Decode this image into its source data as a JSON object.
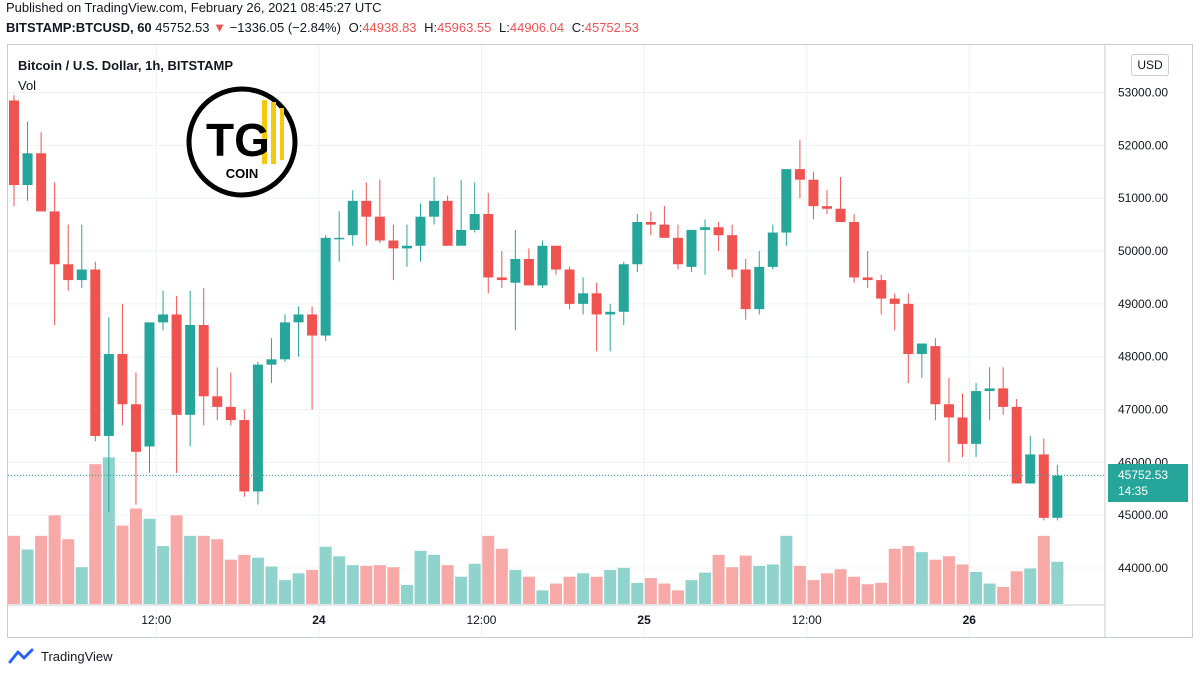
{
  "header": {
    "published": "Published on TradingView.com, February 26, 2021 08:45:27 UTC",
    "symbol": "BITSTAMP:BTCUSD, 60",
    "last": "45752.53",
    "arrow": "▼",
    "change": "−1336.05 (−2.84%)",
    "o_label": "O:",
    "o": "44938.83",
    "h_label": "H:",
    "h": "45963.55",
    "l_label": "L:",
    "l": "44906.04",
    "c_label": "C:",
    "c": "45752.53"
  },
  "legend": {
    "title": "Bitcoin / U.S. Dollar, 1h, BITSTAMP",
    "vol": "Vol"
  },
  "currency_badge": "USD",
  "price_tag": {
    "price": "45752.53",
    "countdown": "14:35"
  },
  "logo": {
    "text_main": "TG",
    "text_sub": "COIN"
  },
  "footer": {
    "brand": "TradingView"
  },
  "colors": {
    "up": "#26a69a",
    "down": "#ef5350",
    "up_vol": "#8fd3cc",
    "down_vol": "#f7a9a7",
    "grid": "#eef0f3"
  },
  "chart_data": {
    "type": "candlestick",
    "ylim": [
      43300,
      53900
    ],
    "y_ticks": [
      44000,
      45000,
      46000,
      47000,
      48000,
      49000,
      50000,
      51000,
      52000,
      53000
    ],
    "y_tick_labels": [
      "44000.00",
      "45000.00",
      "46000.00",
      "47000.00",
      "48000.00",
      "49000.00",
      "50000.00",
      "51000.00",
      "52000.00",
      "53000.00"
    ],
    "x_ticks": [
      {
        "index": 10.5,
        "label": "12:00"
      },
      {
        "index": 22.5,
        "label": "24"
      },
      {
        "index": 34.5,
        "label": "12:00"
      },
      {
        "index": 46.5,
        "label": "25"
      },
      {
        "index": 58.5,
        "label": "12:00"
      },
      {
        "index": 70.5,
        "label": "26"
      }
    ],
    "last_price": 45752.53,
    "candles": [
      [
        52850,
        52950,
        50850,
        51250
      ],
      [
        51250,
        52450,
        50950,
        51850
      ],
      [
        51850,
        52250,
        50800,
        50750
      ],
      [
        50750,
        51300,
        48600,
        49750
      ],
      [
        49750,
        50500,
        49250,
        49450
      ],
      [
        49450,
        50500,
        49300,
        49650
      ],
      [
        49650,
        49800,
        46400,
        46500
      ],
      [
        46500,
        48750,
        45050,
        48050
      ],
      [
        48050,
        49000,
        46700,
        47100
      ],
      [
        47100,
        47700,
        45200,
        46200
      ],
      [
        46300,
        48600,
        45800,
        48650
      ],
      [
        48650,
        49250,
        48500,
        48800
      ],
      [
        48800,
        49150,
        45800,
        46900
      ],
      [
        46900,
        49250,
        46300,
        48600
      ],
      [
        48600,
        49300,
        46700,
        47250
      ],
      [
        47250,
        47800,
        46800,
        47050
      ],
      [
        47050,
        47700,
        46700,
        46800
      ],
      [
        46800,
        47000,
        45350,
        45450
      ],
      [
        45450,
        47900,
        45200,
        47850
      ],
      [
        47850,
        48350,
        47500,
        47950
      ],
      [
        47950,
        48800,
        47900,
        48650
      ],
      [
        48650,
        48950,
        48000,
        48800
      ],
      [
        48800,
        48950,
        47000,
        48400
      ],
      [
        48400,
        50300,
        48300,
        50250
      ],
      [
        50250,
        50750,
        49800,
        50250
      ],
      [
        50300,
        51150,
        50100,
        50950
      ],
      [
        50950,
        51300,
        50100,
        50650
      ],
      [
        50650,
        51350,
        50150,
        50200
      ],
      [
        50200,
        50500,
        49450,
        50050
      ],
      [
        50050,
        50500,
        49700,
        50100
      ],
      [
        50100,
        50900,
        49800,
        50650
      ],
      [
        50650,
        51400,
        50500,
        50950
      ],
      [
        50950,
        51050,
        50100,
        50100
      ],
      [
        50100,
        51350,
        50200,
        50400
      ],
      [
        50400,
        51300,
        50350,
        50700
      ],
      [
        50700,
        51100,
        49200,
        49500
      ],
      [
        49500,
        50000,
        49300,
        49450
      ],
      [
        49400,
        50400,
        48500,
        49850
      ],
      [
        49850,
        50050,
        49400,
        49350
      ],
      [
        49350,
        50200,
        49300,
        50100
      ],
      [
        50100,
        50100,
        49550,
        49650
      ],
      [
        49650,
        49700,
        48900,
        49000
      ],
      [
        49000,
        49500,
        48800,
        49200
      ],
      [
        49200,
        49400,
        48100,
        48800
      ],
      [
        48800,
        49000,
        48100,
        48850
      ],
      [
        48850,
        49800,
        48600,
        49750
      ],
      [
        49750,
        50700,
        49600,
        50550
      ],
      [
        50550,
        50750,
        50300,
        50500
      ],
      [
        50500,
        50850,
        50250,
        50250
      ],
      [
        50250,
        50500,
        49650,
        49750
      ],
      [
        49700,
        50400,
        49600,
        50400
      ],
      [
        50400,
        50600,
        49550,
        50450
      ],
      [
        50450,
        50550,
        50000,
        50300
      ],
      [
        50300,
        50500,
        49500,
        49650
      ],
      [
        49650,
        49850,
        48700,
        48900
      ],
      [
        48900,
        50000,
        48800,
        49700
      ],
      [
        49700,
        50500,
        49650,
        50350
      ],
      [
        50350,
        51550,
        50100,
        51550
      ],
      [
        51550,
        52100,
        51000,
        51350
      ],
      [
        51350,
        51500,
        50600,
        50850
      ],
      [
        50850,
        51150,
        50700,
        50800
      ],
      [
        50800,
        51400,
        50550,
        50550
      ],
      [
        50550,
        50700,
        49400,
        49500
      ],
      [
        49500,
        50000,
        49300,
        49450
      ],
      [
        49450,
        49550,
        48800,
        49100
      ],
      [
        49100,
        49200,
        48500,
        49000
      ],
      [
        49000,
        49200,
        47500,
        48050
      ],
      [
        48050,
        48250,
        47600,
        48250
      ],
      [
        48200,
        48350,
        46800,
        47100
      ],
      [
        47100,
        47600,
        46000,
        46850
      ],
      [
        46850,
        47300,
        46100,
        46350
      ],
      [
        46350,
        47500,
        46100,
        47350
      ],
      [
        47350,
        47800,
        46800,
        47400
      ],
      [
        47400,
        47800,
        46900,
        47050
      ],
      [
        47050,
        47200,
        45600,
        45600
      ],
      [
        45600,
        46500,
        45600,
        46150
      ],
      [
        46150,
        46450,
        44900,
        44950
      ],
      [
        44950,
        45950,
        44900,
        45750
      ]
    ],
    "volumes": [
      1000,
      800,
      1000,
      1300,
      950,
      540,
      2050,
      2150,
      1150,
      1400,
      1250,
      850,
      1300,
      1000,
      1000,
      950,
      650,
      720,
      680,
      550,
      350,
      450,
      500,
      840,
      700,
      570,
      560,
      570,
      540,
      280,
      780,
      720,
      570,
      400,
      590,
      1000,
      810,
      500,
      400,
      200,
      300,
      400,
      450,
      400,
      500,
      530,
      310,
      380,
      300,
      200,
      350,
      460,
      720,
      540,
      710,
      560,
      580,
      1000,
      560,
      350,
      450,
      510,
      400,
      290,
      310,
      810,
      850,
      760,
      650,
      700,
      580,
      470,
      300,
      250,
      480,
      520,
      1000,
      620
    ]
  }
}
